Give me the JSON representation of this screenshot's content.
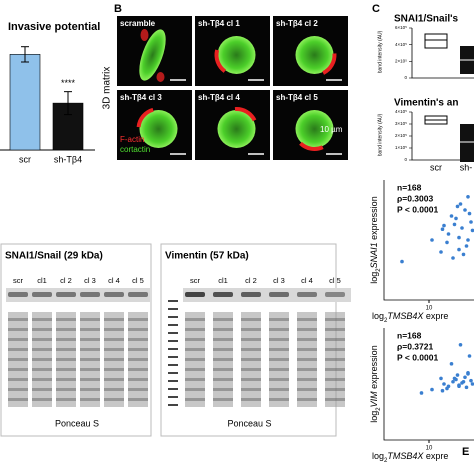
{
  "panel_a": {
    "type": "bar",
    "title": "Invasive potential",
    "categories": [
      "scr",
      "sh-Tβ4"
    ],
    "values": [
      1,
      0.49
    ],
    "errors": [
      0.08,
      0.12
    ],
    "colors": [
      "#8fc1ea",
      "#111111"
    ],
    "ylim": [
      0,
      1.15
    ],
    "annotation": "****"
  },
  "panel_b": {
    "label": "B",
    "axis_label": "3D matrix",
    "tiles": [
      "scramble",
      "sh-Tβ4 cl 1",
      "sh-Tβ4 cl 2",
      "sh-Tβ4 cl 3",
      "sh-Tβ4 cl 4",
      "sh-Tβ4 cl 5"
    ],
    "legend": [
      "F-actin",
      "cortactin"
    ],
    "scale_bar": "10 µm"
  },
  "panel_c": {
    "label": "C",
    "y_label": "band intensity (AU)",
    "plots": [
      {
        "title": "SNAI1/Snail's",
        "yticks": [
          "6×10⁵",
          "4×10⁵",
          "2×10⁵",
          "0"
        ]
      },
      {
        "title": "Vimentin's an",
        "yticks": [
          "4×10⁵",
          "3×10⁵",
          "2×10⁵",
          "1×10⁵",
          "0"
        ]
      }
    ],
    "categories": [
      "scr",
      "sh-"
    ]
  },
  "panel_d": {
    "blots": [
      {
        "title": "SNAI1/Snail (29 kDa)",
        "lanes": [
          "scr",
          "cl1",
          "cl 2",
          "cl 3",
          "cl 4",
          "cl 5"
        ],
        "stain": "Ponceau S"
      },
      {
        "title": "Vimentin (57 kDa)",
        "lanes": [
          "scr",
          "cl1",
          "cl 2",
          "cl 3",
          "cl 4",
          "cl 5"
        ],
        "stain": "Ponceau S"
      }
    ]
  },
  "panel_e": {
    "label": "E",
    "color": "#3a7fd0",
    "plots": [
      {
        "type": "scatter",
        "stats": [
          "n=168",
          "ρ=0.3003",
          "P < 0.0001"
        ],
        "y_label": {
          "prefix": "log",
          "sub": "2",
          "gene": "SNAI1",
          "suffix": " expression"
        },
        "x_label": {
          "prefix": "log",
          "sub": "2",
          "gene": "TMSB4X",
          "suffix": " expre"
        },
        "xlim": [
          7,
          13
        ],
        "ylim": [
          0,
          10
        ],
        "xticks": [
          10
        ],
        "x": [
          10.2,
          10.8,
          11.0,
          11.3,
          11.5,
          11.6,
          11.8,
          12.0,
          12.1,
          12.2,
          12.4,
          12.5,
          12.6,
          12.8,
          12.9,
          11.9,
          11.2,
          12.3,
          12.7,
          10.9,
          11.7,
          12.0,
          12.6,
          8.2
        ],
        "y": [
          5.0,
          4.0,
          6.2,
          5.5,
          7.0,
          3.5,
          6.8,
          5.2,
          8.0,
          6.0,
          7.5,
          4.5,
          8.6,
          6.5,
          5.8,
          7.8,
          4.8,
          3.8,
          7.2,
          5.9,
          6.3,
          4.2,
          5.0,
          3.2
        ]
      },
      {
        "type": "scatter",
        "stats": [
          "n=168",
          "ρ=0.3721",
          "P < 0.0001"
        ],
        "y_label": {
          "prefix": "log",
          "sub": "2",
          "gene": "VIM",
          "suffix": " expression"
        },
        "x_label": {
          "prefix": "log",
          "sub": "2",
          "gene": "TMSB4X",
          "suffix": " expre"
        },
        "xlim": [
          7,
          13
        ],
        "ylim": [
          0,
          10
        ],
        "xticks": [
          10
        ],
        "x": [
          10.2,
          10.8,
          11.0,
          11.3,
          11.5,
          11.6,
          11.8,
          12.0,
          12.1,
          12.2,
          12.4,
          12.5,
          12.6,
          12.8,
          12.9,
          11.9,
          11.2,
          12.3,
          12.7,
          10.9,
          11.7,
          12.0,
          12.6,
          9.5
        ],
        "y": [
          4.5,
          5.5,
          5.0,
          4.8,
          6.8,
          5.2,
          5.4,
          4.9,
          8.5,
          5.1,
          5.6,
          4.7,
          6.0,
          5.3,
          5.0,
          5.8,
          4.6,
          5.2,
          7.5,
          4.4,
          5.5,
          4.8,
          5.9,
          4.2
        ]
      }
    ]
  }
}
